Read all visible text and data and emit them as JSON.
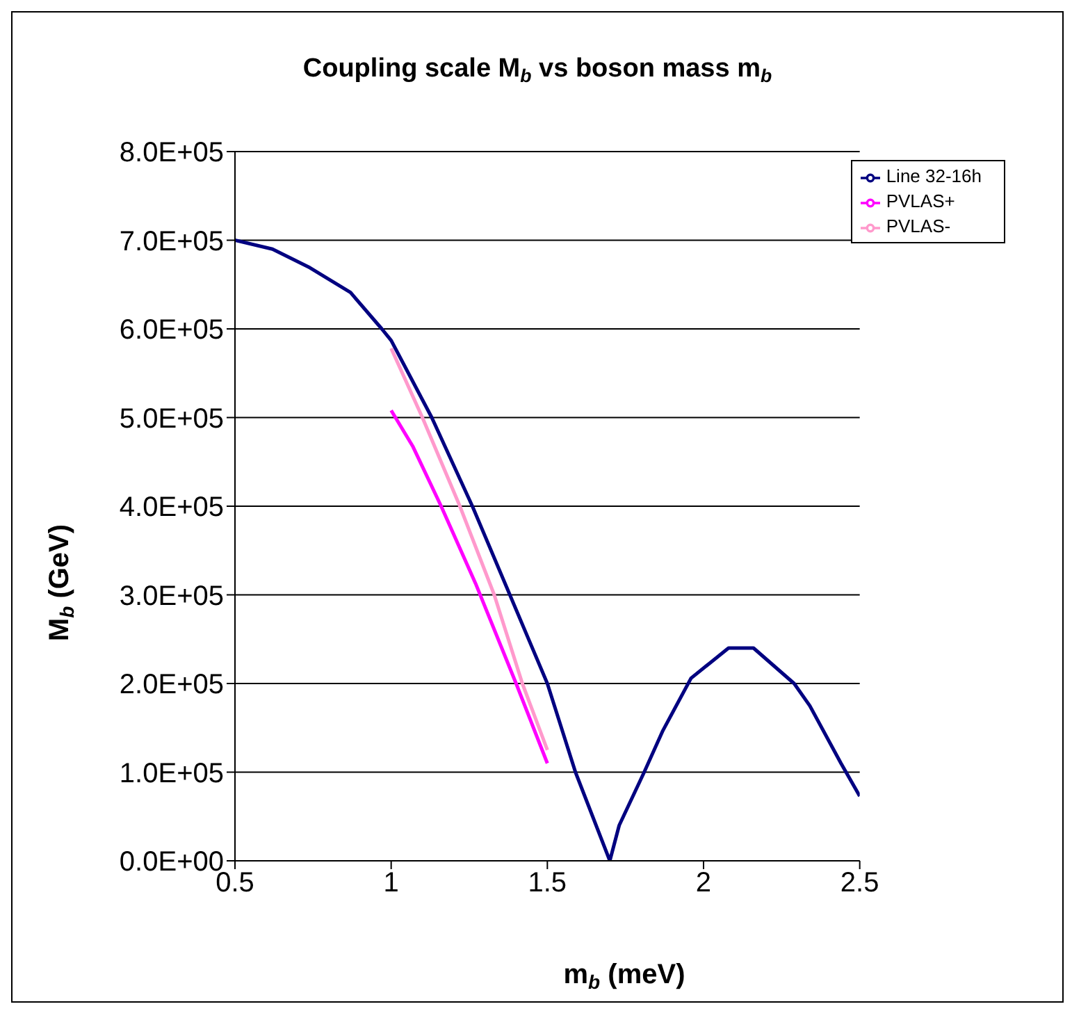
{
  "chart_data": {
    "type": "line",
    "title": "Coupling scale M$_{b}$ vs boson mass m$_{b}$",
    "xlabel": "m$_{b}$ (meV)",
    "ylabel": "M$_{b}$ (GeV)",
    "xlim": [
      0.5,
      2.5
    ],
    "xticks": [
      0.5,
      1,
      1.5,
      2,
      2.5
    ],
    "ylim": [
      0,
      800000
    ],
    "yticks": [
      {
        "value": 0,
        "label": "0.0E+00"
      },
      {
        "value": 100000,
        "label": "1.0E+05"
      },
      {
        "value": 200000,
        "label": "2.0E+05"
      },
      {
        "value": 300000,
        "label": "3.0E+05"
      },
      {
        "value": 400000,
        "label": "4.0E+05"
      },
      {
        "value": 500000,
        "label": "5.0E+05"
      },
      {
        "value": 600000,
        "label": "6.0E+05"
      },
      {
        "value": 700000,
        "label": "7.0E+05"
      },
      {
        "value": 800000,
        "label": "8.0E+05"
      }
    ],
    "grid": "y",
    "legend": "top right",
    "marker": "none",
    "line_style": "solid",
    "series": [
      {
        "name": "Line 32-16h",
        "color": "#000080",
        "x": [
          0.5,
          0.62,
          0.74,
          0.87,
          0.97,
          1.0,
          1.13,
          1.26,
          1.38,
          1.5,
          1.59,
          1.7,
          1.73,
          1.81,
          1.87,
          1.96,
          2.08,
          2.16,
          2.29,
          2.34,
          2.44,
          2.5
        ],
        "values": [
          700000,
          690000,
          669000,
          641000,
          600000,
          587000,
          500000,
          400000,
          300000,
          200000,
          100000,
          0,
          40000,
          100000,
          147000,
          206000,
          240000,
          240000,
          200000,
          175000,
          110000,
          73000
        ]
      },
      {
        "name": "PVLAS+",
        "color": "#ff00ff",
        "x": [
          1.0,
          1.07,
          1.16,
          1.27,
          1.4,
          1.5
        ],
        "values": [
          508000,
          467000,
          400000,
          313000,
          200000,
          110000
        ]
      },
      {
        "name": "PVLAS-",
        "color": "#ff99cc",
        "x": [
          1.0,
          1.1,
          1.22,
          1.33,
          1.42,
          1.5
        ],
        "values": [
          578000,
          500000,
          400000,
          300000,
          200000,
          125000
        ]
      }
    ]
  }
}
